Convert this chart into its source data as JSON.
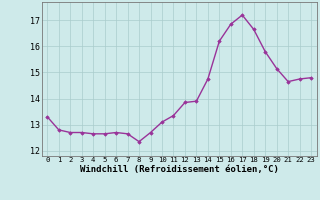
{
  "x": [
    0,
    1,
    2,
    3,
    4,
    5,
    6,
    7,
    8,
    9,
    10,
    11,
    12,
    13,
    14,
    15,
    16,
    17,
    18,
    19,
    20,
    21,
    22,
    23
  ],
  "y": [
    13.3,
    12.8,
    12.7,
    12.7,
    12.65,
    12.65,
    12.7,
    12.65,
    12.35,
    12.7,
    13.1,
    13.35,
    13.85,
    13.9,
    14.75,
    16.2,
    16.85,
    17.2,
    16.65,
    15.8,
    15.15,
    14.65,
    14.75,
    14.8
  ],
  "line_color": "#993399",
  "marker": "D",
  "marker_size": 1.8,
  "linewidth": 1.0,
  "xlabel": "Windchill (Refroidissement éolien,°C)",
  "xlabel_fontsize": 6.5,
  "xtick_fontsize": 5.2,
  "ytick_fontsize": 6.0,
  "ylim": [
    11.8,
    17.7
  ],
  "xlim": [
    -0.5,
    23.5
  ],
  "yticks": [
    12,
    13,
    14,
    15,
    16,
    17
  ],
  "bg_color": "#ceeaea",
  "grid_color": "#aacccc",
  "spine_color": "#777777"
}
